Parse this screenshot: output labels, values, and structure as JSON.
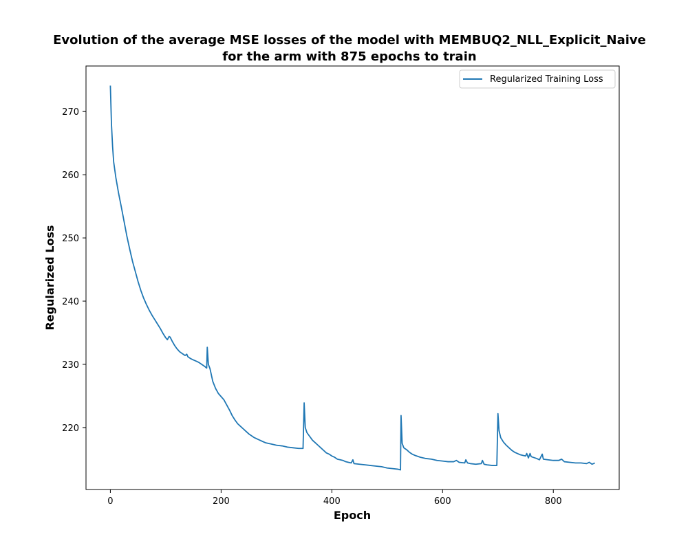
{
  "chart_data": {
    "type": "line",
    "title_line1": "Evolution of the average MSE losses of the model with MEMBUQ2_NLL_Explicit_Naive",
    "title_line2": "for the arm with 875 epochs to train",
    "xlabel": "Epoch",
    "ylabel": "Regularized Loss",
    "xlim": [
      -44,
      919
    ],
    "ylim": [
      210.2,
      277.2
    ],
    "x_ticks": [
      0,
      200,
      400,
      600,
      800
    ],
    "y_ticks": [
      220,
      230,
      240,
      250,
      260,
      270
    ],
    "grid": false,
    "legend_position": "top-right",
    "series": [
      {
        "name": "Regularized Training Loss",
        "color": "#1f77b4",
        "points": [
          [
            0,
            274.1
          ],
          [
            2,
            268.0
          ],
          [
            4,
            264.5
          ],
          [
            6,
            262.0
          ],
          [
            10,
            259.5
          ],
          [
            15,
            257.0
          ],
          [
            20,
            254.8
          ],
          [
            25,
            252.5
          ],
          [
            30,
            250.2
          ],
          [
            35,
            248.2
          ],
          [
            40,
            246.3
          ],
          [
            45,
            244.7
          ],
          [
            50,
            243.1
          ],
          [
            55,
            241.7
          ],
          [
            60,
            240.5
          ],
          [
            65,
            239.5
          ],
          [
            70,
            238.6
          ],
          [
            75,
            237.8
          ],
          [
            80,
            237.1
          ],
          [
            85,
            236.4
          ],
          [
            90,
            235.7
          ],
          [
            95,
            234.9
          ],
          [
            100,
            234.2
          ],
          [
            103,
            233.9
          ],
          [
            106,
            234.4
          ],
          [
            108,
            234.3
          ],
          [
            112,
            233.6
          ],
          [
            116,
            233.0
          ],
          [
            120,
            232.5
          ],
          [
            125,
            232.0
          ],
          [
            130,
            231.7
          ],
          [
            135,
            231.4
          ],
          [
            138,
            231.6
          ],
          [
            140,
            231.2
          ],
          [
            145,
            230.9
          ],
          [
            150,
            230.7
          ],
          [
            155,
            230.5
          ],
          [
            160,
            230.3
          ],
          [
            165,
            230.0
          ],
          [
            170,
            229.7
          ],
          [
            174,
            229.4
          ],
          [
            175,
            232.7
          ],
          [
            177,
            230.0
          ],
          [
            180,
            229.3
          ],
          [
            185,
            227.3
          ],
          [
            190,
            226.2
          ],
          [
            195,
            225.4
          ],
          [
            200,
            224.9
          ],
          [
            205,
            224.4
          ],
          [
            210,
            223.6
          ],
          [
            215,
            222.8
          ],
          [
            220,
            221.9
          ],
          [
            225,
            221.2
          ],
          [
            230,
            220.6
          ],
          [
            235,
            220.2
          ],
          [
            240,
            219.8
          ],
          [
            245,
            219.4
          ],
          [
            250,
            219.0
          ],
          [
            255,
            218.7
          ],
          [
            260,
            218.4
          ],
          [
            265,
            218.2
          ],
          [
            270,
            218.0
          ],
          [
            275,
            217.8
          ],
          [
            280,
            217.6
          ],
          [
            290,
            217.4
          ],
          [
            300,
            217.2
          ],
          [
            310,
            217.1
          ],
          [
            320,
            216.9
          ],
          [
            330,
            216.8
          ],
          [
            340,
            216.7
          ],
          [
            348,
            216.7
          ],
          [
            350,
            223.9
          ],
          [
            352,
            220.0
          ],
          [
            355,
            219.2
          ],
          [
            360,
            218.6
          ],
          [
            365,
            218.0
          ],
          [
            370,
            217.6
          ],
          [
            375,
            217.2
          ],
          [
            380,
            216.8
          ],
          [
            385,
            216.4
          ],
          [
            390,
            216.0
          ],
          [
            395,
            215.8
          ],
          [
            400,
            215.5
          ],
          [
            405,
            215.3
          ],
          [
            410,
            215.0
          ],
          [
            415,
            214.9
          ],
          [
            420,
            214.8
          ],
          [
            425,
            214.6
          ],
          [
            430,
            214.5
          ],
          [
            435,
            214.4
          ],
          [
            438,
            214.9
          ],
          [
            440,
            214.3
          ],
          [
            450,
            214.2
          ],
          [
            460,
            214.1
          ],
          [
            470,
            214.0
          ],
          [
            480,
            213.9
          ],
          [
            490,
            213.8
          ],
          [
            500,
            213.6
          ],
          [
            510,
            213.5
          ],
          [
            520,
            213.4
          ],
          [
            524,
            213.3
          ],
          [
            525,
            221.9
          ],
          [
            527,
            217.5
          ],
          [
            530,
            216.8
          ],
          [
            535,
            216.5
          ],
          [
            540,
            216.1
          ],
          [
            545,
            215.8
          ],
          [
            550,
            215.6
          ],
          [
            560,
            215.3
          ],
          [
            570,
            215.1
          ],
          [
            580,
            215.0
          ],
          [
            590,
            214.8
          ],
          [
            600,
            214.7
          ],
          [
            610,
            214.6
          ],
          [
            620,
            214.6
          ],
          [
            625,
            214.8
          ],
          [
            630,
            214.5
          ],
          [
            640,
            214.4
          ],
          [
            642,
            214.9
          ],
          [
            645,
            214.4
          ],
          [
            650,
            214.3
          ],
          [
            660,
            214.2
          ],
          [
            670,
            214.3
          ],
          [
            672,
            214.8
          ],
          [
            675,
            214.2
          ],
          [
            680,
            214.1
          ],
          [
            690,
            214.0
          ],
          [
            698,
            214.0
          ],
          [
            700,
            222.2
          ],
          [
            702,
            219.5
          ],
          [
            705,
            218.4
          ],
          [
            710,
            217.7
          ],
          [
            715,
            217.2
          ],
          [
            720,
            216.8
          ],
          [
            725,
            216.4
          ],
          [
            730,
            216.1
          ],
          [
            735,
            215.9
          ],
          [
            740,
            215.7
          ],
          [
            745,
            215.6
          ],
          [
            750,
            215.5
          ],
          [
            752,
            215.9
          ],
          [
            755,
            215.2
          ],
          [
            758,
            215.9
          ],
          [
            760,
            215.4
          ],
          [
            770,
            215.1
          ],
          [
            775,
            214.9
          ],
          [
            780,
            215.8
          ],
          [
            782,
            215.0
          ],
          [
            790,
            214.9
          ],
          [
            800,
            214.8
          ],
          [
            810,
            214.8
          ],
          [
            815,
            215.0
          ],
          [
            820,
            214.6
          ],
          [
            830,
            214.5
          ],
          [
            840,
            214.4
          ],
          [
            850,
            214.4
          ],
          [
            860,
            214.3
          ],
          [
            865,
            214.5
          ],
          [
            870,
            214.2
          ],
          [
            875,
            214.4
          ]
        ]
      }
    ]
  }
}
